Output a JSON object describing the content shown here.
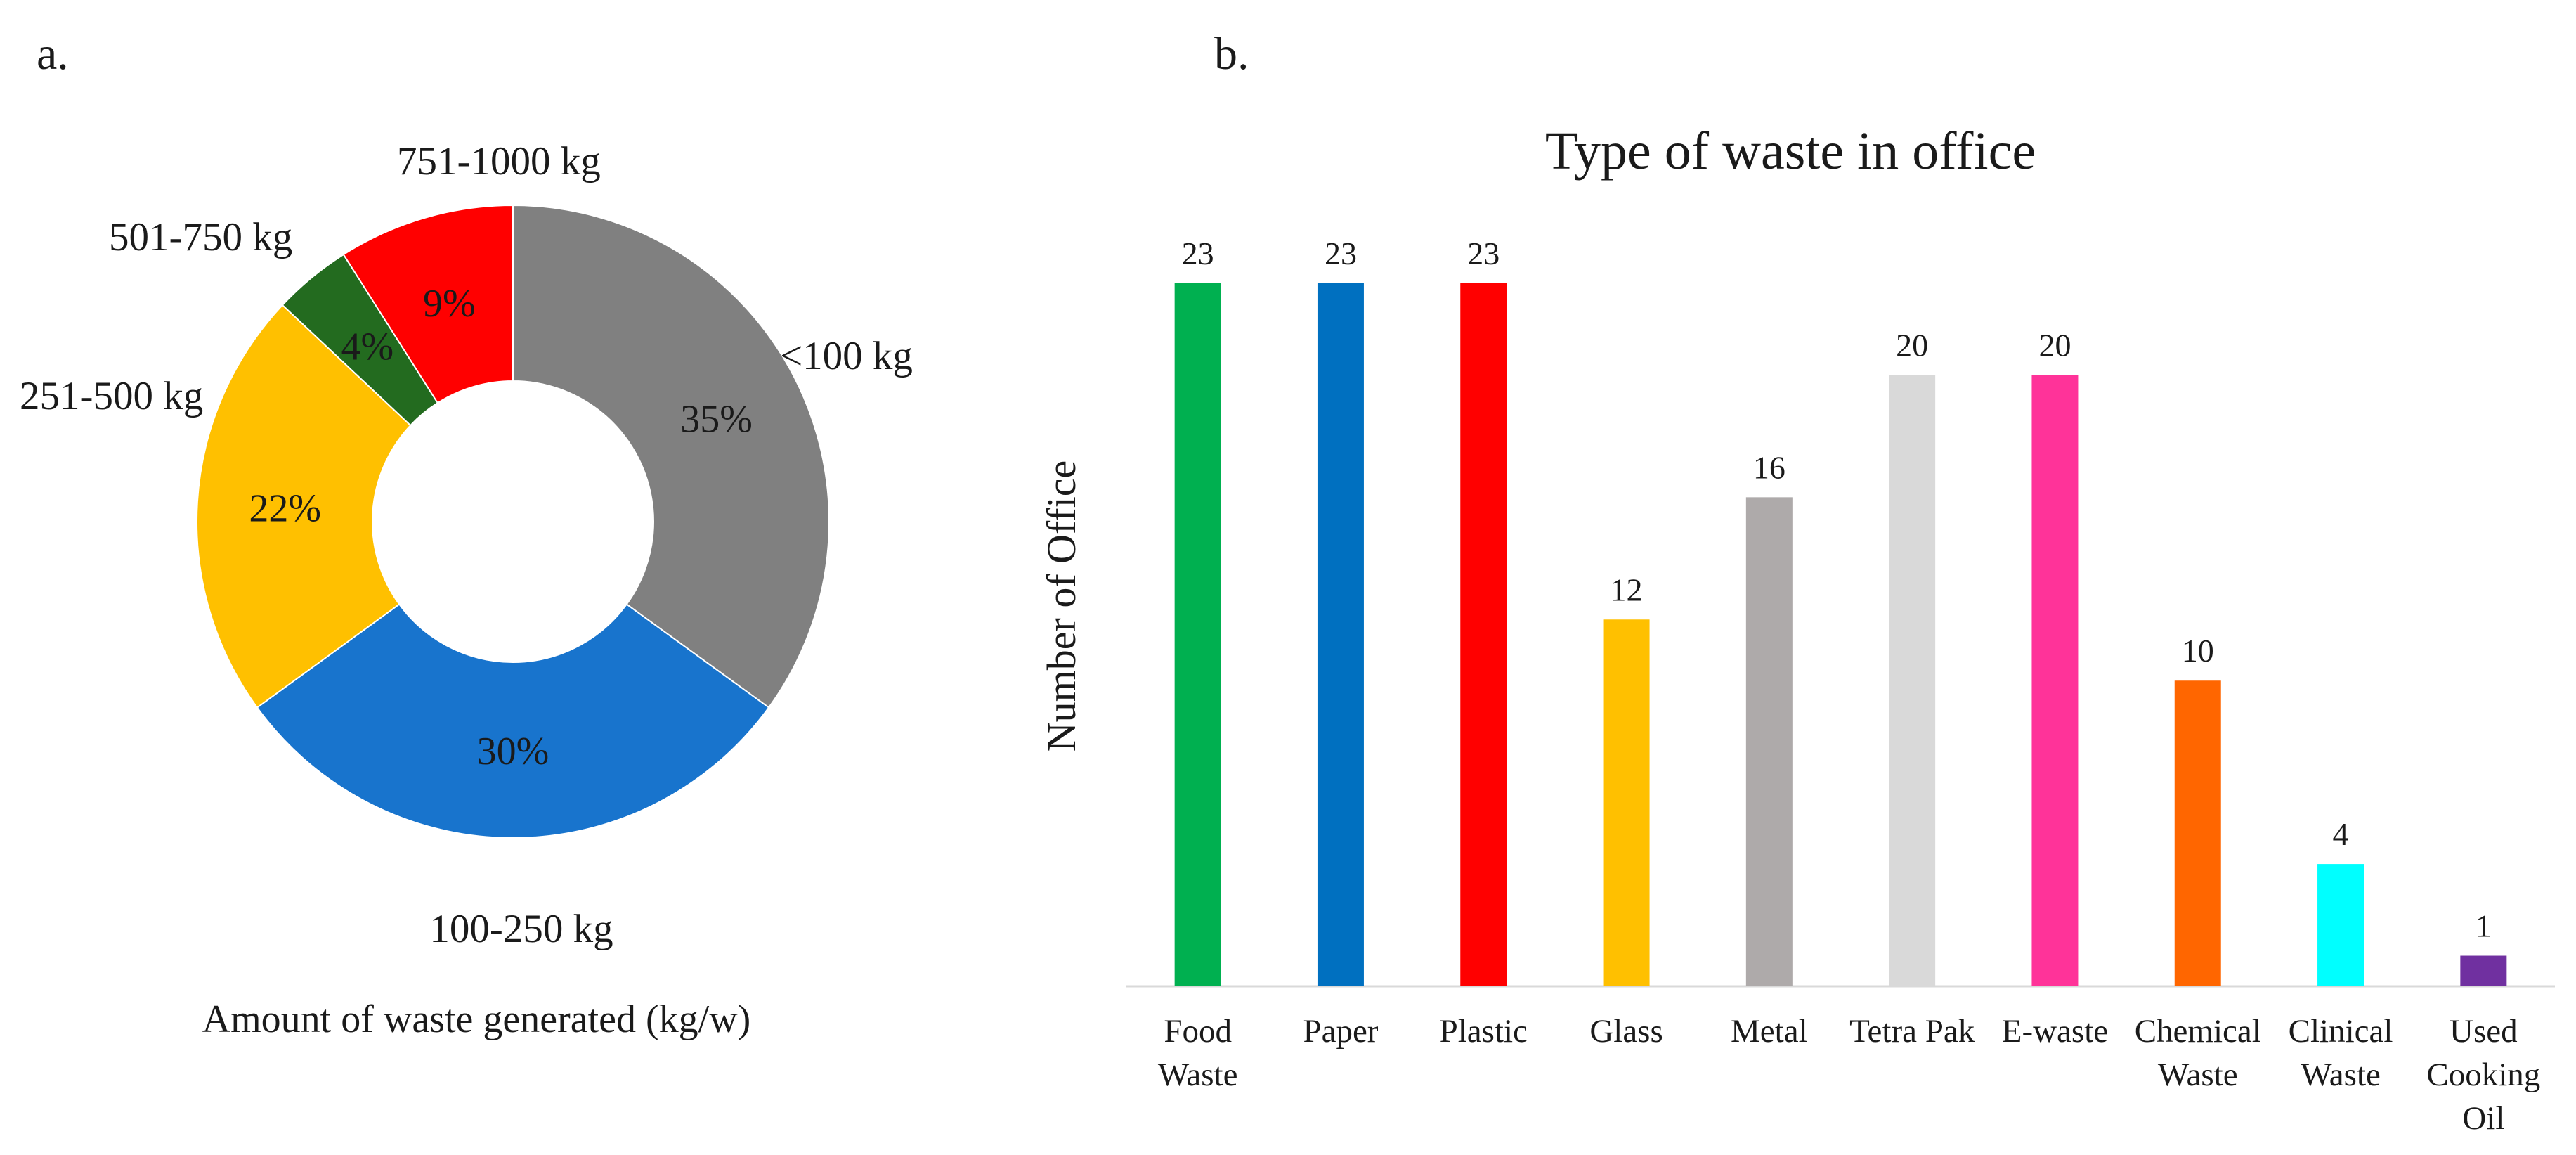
{
  "panels": {
    "a_label": "a.",
    "b_label": "b."
  },
  "chart_data": [
    {
      "type": "pie",
      "variant": "donut",
      "xlabel": "Amount of waste generated (kg/w)",
      "slices": [
        {
          "label": "<100 kg",
          "value": 35,
          "pct_label": "35%",
          "color": "#808080"
        },
        {
          "label": "100-250 kg",
          "value": 30,
          "pct_label": "30%",
          "color": "#1874CD"
        },
        {
          "label": "251-500 kg",
          "value": 22,
          "pct_label": "22%",
          "color": "#FFC000"
        },
        {
          "label": "501-750 kg",
          "value": 4,
          "pct_label": "4%",
          "color": "#236B1F"
        },
        {
          "label": "751-1000 kg",
          "value": 9,
          "pct_label": "9%",
          "color": "#FF0000"
        }
      ]
    },
    {
      "type": "bar",
      "title": "Type of waste in office",
      "xlabel": "",
      "ylabel": "Number of Office",
      "ylim": [
        0,
        23
      ],
      "grid": false,
      "categories": [
        "Food Waste",
        "Paper",
        "Plastic",
        "Glass",
        "Metal",
        "Tetra Pak",
        "E-waste",
        "Chemical Waste",
        "Clinical Waste",
        "Used Cooking Oil"
      ],
      "category_lines": [
        [
          "Food",
          "Waste"
        ],
        [
          "Paper"
        ],
        [
          "Plastic"
        ],
        [
          "Glass"
        ],
        [
          "Metal"
        ],
        [
          "Tetra Pak"
        ],
        [
          "E-waste"
        ],
        [
          "Chemical",
          "Waste"
        ],
        [
          "Clinical",
          "Waste"
        ],
        [
          "Used",
          "Cooking",
          "Oil"
        ]
      ],
      "values": [
        23,
        23,
        23,
        12,
        16,
        20,
        20,
        10,
        4,
        1
      ],
      "colors": [
        "#00B050",
        "#0070C0",
        "#FF0000",
        "#FFC000",
        "#AEAAAA",
        "#D9D9D9",
        "#FF3399",
        "#FF6600",
        "#00FFFF",
        "#7030A0"
      ],
      "axis_color": "#D9D9D9"
    }
  ]
}
